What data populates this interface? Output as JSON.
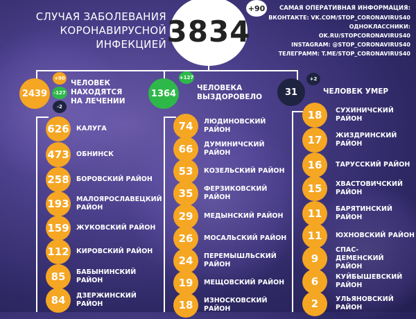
{
  "header": {
    "title_line1": "СЛУЧАЯ ЗАБОЛЕВАНИЯ",
    "title_line2": "КОРОНАВИРУСНОЙ ИНФЕКЦИЕЙ",
    "total": "3834",
    "total_delta": "+90"
  },
  "info": {
    "head": "САМАЯ ОПЕРАТИВНАЯ ИНФОРМАЦИЯ:",
    "lines": [
      "ВКОНТАКТЕ: VK.COM/STOP_CORONAVIRUS40",
      "ОДНОКЛАССНИКИ: OK.RU/STOPCORONAVIRUS40",
      "INSTAGRAM: @STOP_CORONAVIRUS40",
      "ТЕЛЕГРАММ: T.ME/STOP_CORONAVIRUS40"
    ]
  },
  "summary": {
    "treatment": {
      "value": "2439",
      "plus": "+90",
      "minus": "-127",
      "minus2": "-2",
      "label_line1": "ЧЕЛОВЕК",
      "label_line2": "НАХОДЯТСЯ",
      "label_line3": "НА ЛЕЧЕНИИ"
    },
    "recovered": {
      "value": "1364",
      "plus": "+127",
      "label_line1": "ЧЕЛОВЕКА",
      "label_line2": "ВЫЗДОРОВЕЛО"
    },
    "died": {
      "value": "31",
      "plus": "+2",
      "label": "ЧЕЛОВЕК УМЕР"
    }
  },
  "colors": {
    "orange": "#f5a623",
    "green": "#2fb84a",
    "dark": "#1e2340"
  },
  "columns": [
    [
      {
        "value": "626",
        "name": "КАЛУГА"
      },
      {
        "value": "473",
        "name": "ОБНИНСК"
      },
      {
        "value": "258",
        "name": "БОРОВСКИЙ РАЙОН"
      },
      {
        "value": "193",
        "name": "МАЛОЯРОСЛАВЕЦКИЙ РАЙОН"
      },
      {
        "value": "159",
        "name": "ЖУКОВСКИЙ РАЙОН"
      },
      {
        "value": "112",
        "name": "КИРОВСКИЙ РАЙОН"
      },
      {
        "value": "85",
        "name": "БАБЫНИНСКИЙ РАЙОН"
      },
      {
        "value": "84",
        "name": "ДЗЕРЖИНСКИЙ РАЙОН"
      }
    ],
    [
      {
        "value": "74",
        "name": "ЛЮДИНОВСКИЙ РАЙОН"
      },
      {
        "value": "66",
        "name": "ДУМИНИЧСКИЙ РАЙОН"
      },
      {
        "value": "53",
        "name": "КОЗЕЛЬСКИЙ РАЙОН"
      },
      {
        "value": "35",
        "name": "ФЕРЗИКОВСКИЙ РАЙОН"
      },
      {
        "value": "29",
        "name": "МЕДЫНСКИЙ РАЙОН"
      },
      {
        "value": "26",
        "name": "МОСАЛЬСКИЙ РАЙОН"
      },
      {
        "value": "24",
        "name": "ПЕРЕМЫШЛЬСКИЙ РАЙОН"
      },
      {
        "value": "19",
        "name": "МЕЩОВСКИЙ РАЙОН"
      },
      {
        "value": "18",
        "name": "ИЗНОСКОВСКИЙ РАЙОН"
      }
    ],
    [
      {
        "value": "18",
        "name": "СУХИНИЧСКИЙ РАЙОН"
      },
      {
        "value": "17",
        "name": "ЖИЗДРИНСКИЙ РАЙОН"
      },
      {
        "value": "16",
        "name": "ТАРУССКИЙ РАЙОН"
      },
      {
        "value": "15",
        "name": "ХВАСТОВИЧСКИЙ РАЙОН"
      },
      {
        "value": "11",
        "name": "БАРЯТИНСКИЙ РАЙОН"
      },
      {
        "value": "11",
        "name": "ЮХНОВСКИЙ РАЙОН"
      },
      {
        "value": "9",
        "name": "СПАС-ДЕМЕНСКИЙ РАЙОН"
      },
      {
        "value": "6",
        "name": "КУЙБЫШЕВСКИЙ РАЙОН"
      },
      {
        "value": "2",
        "name": "УЛЬЯНОВСКИЙ РАЙОН"
      }
    ]
  ]
}
